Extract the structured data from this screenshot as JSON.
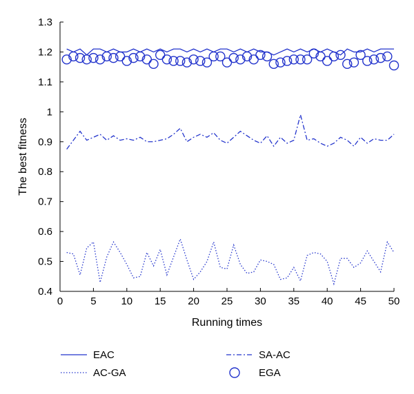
{
  "chart_data": {
    "type": "line",
    "title": "",
    "xlabel": "Running times",
    "ylabel": "The best fitness",
    "xlim": [
      0,
      50
    ],
    "ylim": [
      0.4,
      1.3
    ],
    "xticks": [
      0,
      5,
      10,
      15,
      20,
      25,
      30,
      35,
      40,
      45,
      50
    ],
    "yticks": [
      0.4,
      0.5,
      0.6,
      0.7,
      0.8,
      0.9,
      1,
      1.1,
      1.2,
      1.3
    ],
    "ytick_labels": [
      "0.4",
      "0.5",
      "0.6",
      "0.7",
      "0.8",
      "0.9",
      "1",
      "1.1",
      "1.2",
      "1.3"
    ],
    "grid": false,
    "legend_position": "bottom",
    "color": "#2233cc",
    "series": [
      {
        "name": "EAC",
        "style": "solid",
        "x": [
          1,
          2,
          3,
          4,
          5,
          6,
          7,
          8,
          9,
          10,
          11,
          12,
          13,
          14,
          15,
          16,
          17,
          18,
          19,
          20,
          21,
          22,
          23,
          24,
          25,
          26,
          27,
          28,
          29,
          30,
          31,
          32,
          33,
          34,
          35,
          36,
          37,
          38,
          39,
          40,
          41,
          42,
          43,
          44,
          45,
          46,
          47,
          48,
          49,
          50
        ],
        "y": [
          1.21,
          1.2,
          1.21,
          1.19,
          1.21,
          1.21,
          1.2,
          1.21,
          1.2,
          1.2,
          1.21,
          1.2,
          1.21,
          1.2,
          1.21,
          1.2,
          1.21,
          1.21,
          1.2,
          1.21,
          1.2,
          1.21,
          1.2,
          1.21,
          1.21,
          1.2,
          1.21,
          1.2,
          1.21,
          1.2,
          1.2,
          1.19,
          1.2,
          1.21,
          1.2,
          1.21,
          1.2,
          1.21,
          1.2,
          1.21,
          1.2,
          1.19,
          1.21,
          1.2,
          1.2,
          1.21,
          1.2,
          1.21,
          1.21,
          1.21
        ]
      },
      {
        "name": "SA-AC",
        "style": "dashdot",
        "x": [
          1,
          2,
          3,
          4,
          5,
          6,
          7,
          8,
          9,
          10,
          11,
          12,
          13,
          14,
          15,
          16,
          17,
          18,
          19,
          20,
          21,
          22,
          23,
          24,
          25,
          26,
          27,
          28,
          29,
          30,
          31,
          32,
          33,
          34,
          35,
          36,
          37,
          38,
          39,
          40,
          41,
          42,
          43,
          44,
          45,
          46,
          47,
          48,
          49,
          50
        ],
        "y": [
          0.875,
          0.905,
          0.935,
          0.905,
          0.915,
          0.925,
          0.905,
          0.92,
          0.905,
          0.91,
          0.905,
          0.915,
          0.9,
          0.9,
          0.905,
          0.91,
          0.925,
          0.945,
          0.9,
          0.915,
          0.925,
          0.915,
          0.93,
          0.905,
          0.895,
          0.915,
          0.935,
          0.92,
          0.905,
          0.895,
          0.92,
          0.885,
          0.915,
          0.895,
          0.905,
          0.99,
          0.905,
          0.91,
          0.895,
          0.885,
          0.895,
          0.915,
          0.905,
          0.885,
          0.915,
          0.895,
          0.91,
          0.905,
          0.905,
          0.925
        ]
      },
      {
        "name": "AC-GA",
        "style": "dotted",
        "x": [
          1,
          2,
          3,
          4,
          5,
          6,
          7,
          8,
          9,
          10,
          11,
          12,
          13,
          14,
          15,
          16,
          17,
          18,
          19,
          20,
          21,
          22,
          23,
          24,
          25,
          26,
          27,
          28,
          29,
          30,
          31,
          32,
          33,
          34,
          35,
          36,
          37,
          38,
          39,
          40,
          41,
          42,
          43,
          44,
          45,
          46,
          47,
          48,
          49,
          50
        ],
        "y": [
          0.53,
          0.525,
          0.455,
          0.545,
          0.565,
          0.43,
          0.515,
          0.565,
          0.53,
          0.49,
          0.445,
          0.45,
          0.53,
          0.485,
          0.54,
          0.455,
          0.515,
          0.575,
          0.505,
          0.44,
          0.465,
          0.5,
          0.565,
          0.48,
          0.475,
          0.555,
          0.49,
          0.46,
          0.465,
          0.505,
          0.5,
          0.49,
          0.44,
          0.445,
          0.48,
          0.435,
          0.52,
          0.53,
          0.525,
          0.5,
          0.425,
          0.51,
          0.51,
          0.48,
          0.495,
          0.535,
          0.5,
          0.465,
          0.565,
          0.53
        ]
      },
      {
        "name": "EGA",
        "style": "markers",
        "x": [
          1,
          2,
          3,
          4,
          5,
          6,
          7,
          8,
          9,
          10,
          11,
          12,
          13,
          14,
          15,
          16,
          17,
          18,
          19,
          20,
          21,
          22,
          23,
          24,
          25,
          26,
          27,
          28,
          29,
          30,
          31,
          32,
          33,
          34,
          35,
          36,
          37,
          38,
          39,
          40,
          41,
          42,
          43,
          44,
          45,
          46,
          47,
          48,
          49,
          50
        ],
        "y": [
          1.175,
          1.185,
          1.18,
          1.175,
          1.18,
          1.175,
          1.185,
          1.18,
          1.185,
          1.17,
          1.18,
          1.185,
          1.175,
          1.16,
          1.19,
          1.175,
          1.17,
          1.17,
          1.165,
          1.175,
          1.17,
          1.165,
          1.185,
          1.185,
          1.165,
          1.18,
          1.175,
          1.185,
          1.175,
          1.19,
          1.185,
          1.16,
          1.165,
          1.17,
          1.175,
          1.175,
          1.175,
          1.195,
          1.185,
          1.17,
          1.185,
          1.19,
          1.16,
          1.165,
          1.19,
          1.17,
          1.175,
          1.18,
          1.185,
          1.155
        ]
      }
    ]
  }
}
